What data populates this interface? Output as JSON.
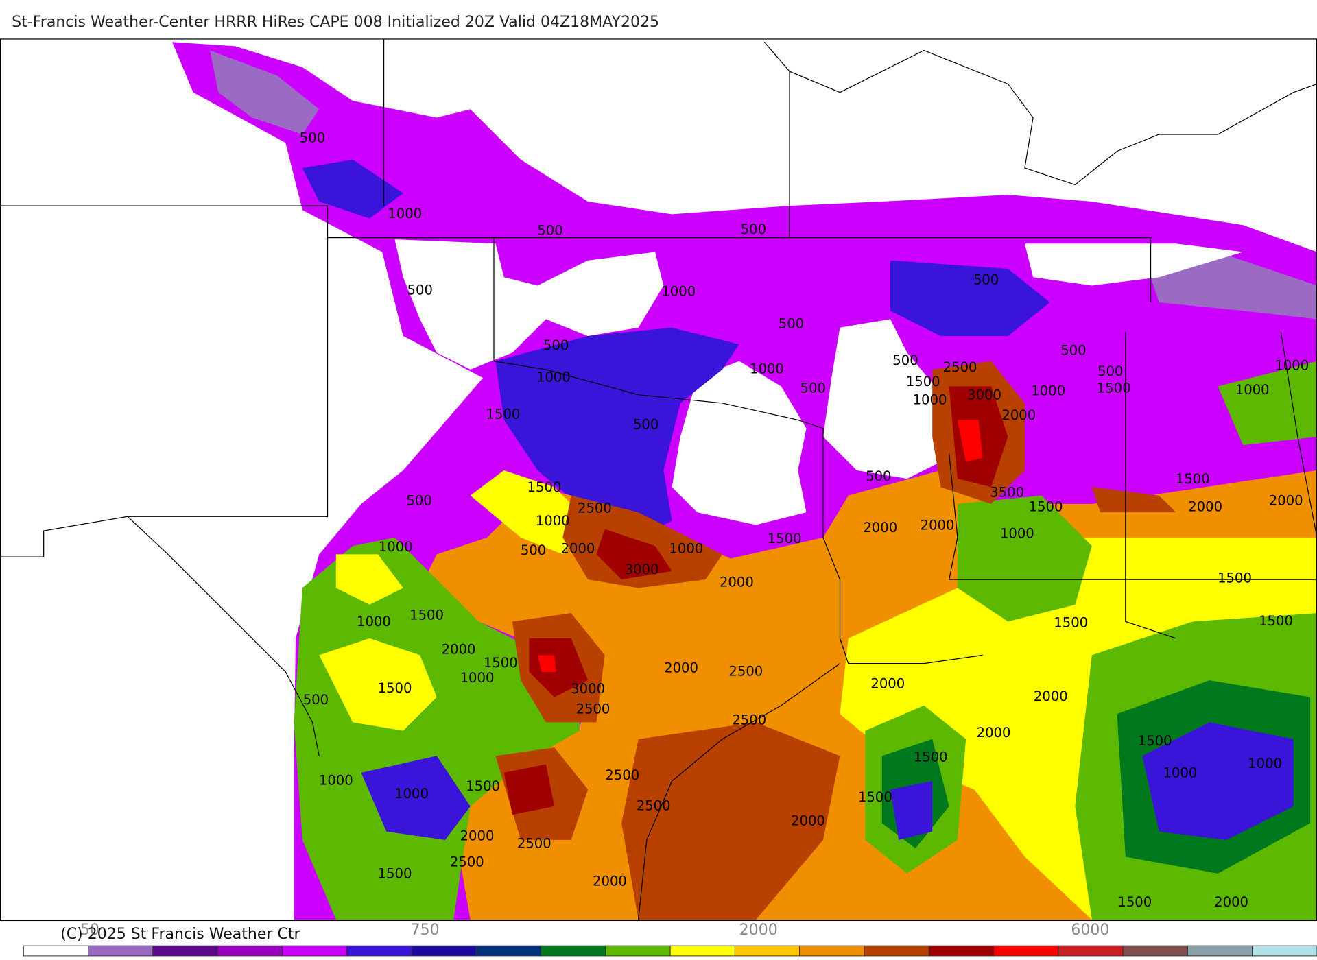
{
  "title": "St-Francis Weather-Center HRRR HiRes CAPE  008 Initialized  20Z Valid 04Z18MAY2025",
  "copyright": "(C) 2025 St Francis Weather Ctr",
  "colorbar": {
    "colors": [
      "#ffffff",
      "#9b6bc4",
      "#5c0a8c",
      "#9a00c0",
      "#cc00ff",
      "#3a14d8",
      "#1a0aa0",
      "#00307e",
      "#00781e",
      "#5cb800",
      "#ffff00",
      "#ffc800",
      "#f09000",
      "#b84000",
      "#a00000",
      "#ff0000",
      "#cc2020",
      "#805050",
      "#8aa0a8",
      "#b0e0e8"
    ],
    "labels": [
      "50",
      "750",
      "2000",
      "6000"
    ]
  },
  "contour_labels": [
    500,
    1000,
    500,
    500,
    500,
    1000,
    500,
    500,
    500,
    1000,
    1000,
    500,
    2500,
    1500,
    500,
    1000,
    500,
    500,
    1000,
    3000,
    1000,
    1500,
    1000,
    1500,
    2000,
    500,
    1500,
    1500,
    500,
    3500,
    2500,
    1500,
    2000,
    2000,
    500,
    1000,
    2000,
    2000,
    1500,
    1000,
    500,
    2000,
    1000,
    1000,
    3000,
    2000,
    1500,
    1500,
    1000,
    1500,
    1500,
    2000,
    1500,
    2000,
    2500,
    1500,
    1000,
    3000,
    2000,
    2000,
    2500,
    500,
    2500,
    2000,
    1500,
    1500,
    1000,
    1000,
    2500,
    1500,
    1000,
    1500,
    1000,
    2500,
    2000,
    2000,
    2500,
    2500,
    1500,
    2000,
    2000,
    1500
  ]
}
